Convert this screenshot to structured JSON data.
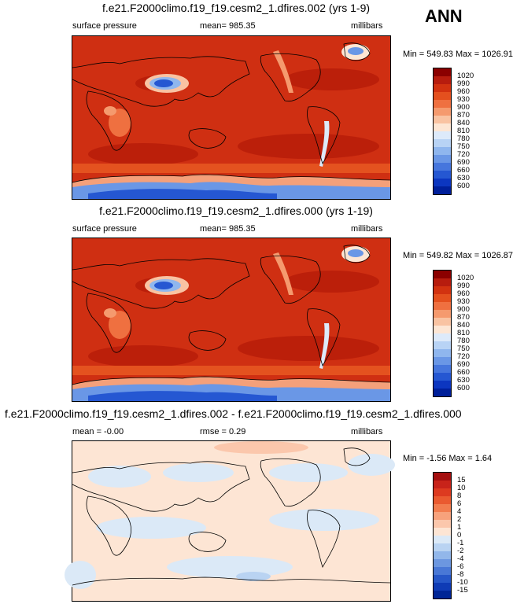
{
  "header": {
    "season": "ANN"
  },
  "panels": [
    {
      "title": "f.e21.F2000climo.f19_f19.cesm2_1.dfires.002 (yrs 1-9)",
      "left_label": "surface pressure",
      "center_label": "mean= 985.35",
      "right_label": "millibars",
      "minmax": "Min = 549.83 Max = 1026.91",
      "colorbar": {
        "levels": [
          "1020",
          "990",
          "960",
          "930",
          "900",
          "870",
          "840",
          "810",
          "780",
          "750",
          "720",
          "690",
          "660",
          "630",
          "600"
        ],
        "colors": [
          "#8b0000",
          "#b71c0e",
          "#d23210",
          "#e4501e",
          "#ef7040",
          "#f59a6e",
          "#f9c3a2",
          "#fde6d4",
          "#ddeafa",
          "#b8d3f5",
          "#8fb6ee",
          "#6a97e6",
          "#4676dd",
          "#2557d2",
          "#0c36c0",
          "#001f9a"
        ]
      }
    },
    {
      "title": "f.e21.F2000climo.f19_f19.cesm2_1.dfires.000 (yrs 1-19)",
      "left_label": "surface pressure",
      "center_label": "mean= 985.35",
      "right_label": "millibars",
      "minmax": "Min = 549.82 Max = 1026.87",
      "colorbar": {
        "levels": [
          "1020",
          "990",
          "960",
          "930",
          "900",
          "870",
          "840",
          "810",
          "780",
          "750",
          "720",
          "690",
          "660",
          "630",
          "600"
        ],
        "colors": [
          "#8b0000",
          "#b71c0e",
          "#d23210",
          "#e4501e",
          "#ef7040",
          "#f59a6e",
          "#f9c3a2",
          "#fde6d4",
          "#ddeafa",
          "#b8d3f5",
          "#8fb6ee",
          "#6a97e6",
          "#4676dd",
          "#2557d2",
          "#0c36c0",
          "#001f9a"
        ]
      }
    },
    {
      "title": "f.e21.F2000climo.f19_f19.cesm2_1.dfires.002 - f.e21.F2000climo.f19_f19.cesm2_1.dfires.000",
      "left_label": "mean =  -0.00",
      "center_label": "rmse =   0.29",
      "right_label": "millibars",
      "minmax": "Min =  -1.56 Max =   1.64",
      "colorbar": {
        "levels": [
          "15",
          "10",
          "8",
          "6",
          "4",
          "2",
          "1",
          "0",
          "-1",
          "-2",
          "-4",
          "-6",
          "-8",
          "-10",
          "-15"
        ],
        "colors": [
          "#a50f0f",
          "#c8231a",
          "#dd3a20",
          "#ea5a30",
          "#f27d4f",
          "#f7a27c",
          "#fbc7ac",
          "#fde5d4",
          "#dbe9f7",
          "#b9d3f2",
          "#92b7ea",
          "#6c97e0",
          "#4978d6",
          "#2657c8",
          "#0f3bb5",
          "#002596"
        ]
      }
    }
  ],
  "chart_data": [
    {
      "type": "heatmap",
      "title": "f.e21.F2000climo.f19_f19.cesm2_1.dfires.002 (yrs 1-9)",
      "variable": "surface pressure",
      "units": "millibars",
      "mean": 985.35,
      "min": 549.83,
      "max": 1026.91,
      "contour_levels": [
        600,
        630,
        660,
        690,
        720,
        750,
        780,
        810,
        840,
        870,
        900,
        930,
        960,
        990,
        1020
      ]
    },
    {
      "type": "heatmap",
      "title": "f.e21.F2000climo.f19_f19.cesm2_1.dfires.000 (yrs 1-19)",
      "variable": "surface pressure",
      "units": "millibars",
      "mean": 985.35,
      "min": 549.82,
      "max": 1026.87,
      "contour_levels": [
        600,
        630,
        660,
        690,
        720,
        750,
        780,
        810,
        840,
        870,
        900,
        930,
        960,
        990,
        1020
      ]
    },
    {
      "type": "heatmap",
      "title": "f.e21.F2000climo.f19_f19.cesm2_1.dfires.002 - f.e21.F2000climo.f19_f19.cesm2_1.dfires.000",
      "units": "millibars",
      "mean": -0.0,
      "rmse": 0.29,
      "min": -1.56,
      "max": 1.64,
      "contour_levels": [
        -15,
        -10,
        -8,
        -6,
        -4,
        -2,
        -1,
        0,
        1,
        2,
        4,
        6,
        8,
        10,
        15
      ]
    }
  ]
}
